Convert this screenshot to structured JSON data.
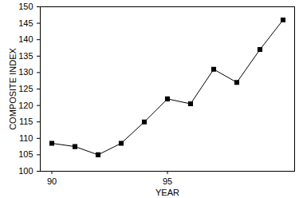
{
  "chart_data": {
    "type": "line",
    "x_label": "YEAR",
    "y_label": "COMPOSITE INDEX",
    "x": [
      90,
      91,
      92,
      93,
      94,
      95,
      96,
      97,
      98,
      99,
      100
    ],
    "values": [
      108.5,
      107.5,
      105,
      108.5,
      115,
      122,
      120.5,
      131,
      127,
      137,
      146
    ],
    "color": "#000000",
    "marker": "square",
    "line_style": "solid",
    "xlim": [
      89.5,
      100.5
    ],
    "xticks": [
      90,
      95
    ],
    "ylim": [
      100,
      150
    ],
    "yticks": [
      100,
      105,
      110,
      115,
      120,
      125,
      130,
      135,
      140,
      145,
      150
    ],
    "grid": false
  }
}
